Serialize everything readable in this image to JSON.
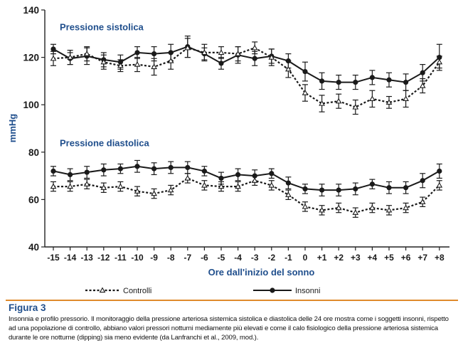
{
  "figure": {
    "title": "Figura 3",
    "caption": "Insonnia e profilo pressorio. Il monitoraggio della pressione arteriosa sistemica sistolica e diastolica delle 24 ore mostra come i soggetti insonni, rispetto ad una popolazione di controllo, abbiano valori pressori notturni mediamente più elevati e come il calo fisiologico della pressione arteriosa sistemica durante le ore notturne (dipping) sia meno evidente (da Lanfranchi et al., 2009, mod.)."
  },
  "chart_data": {
    "type": "line",
    "xlabel": "Ore dall'inizio del sonno",
    "ylabel": "mmHg",
    "ylim": [
      40,
      140
    ],
    "yticks": [
      40,
      60,
      80,
      100,
      120,
      140
    ],
    "categories": [
      "-15",
      "-14",
      "-13",
      "-12",
      "-11",
      "-10",
      "-9",
      "-8",
      "-7",
      "-6",
      "-5",
      "-4",
      "-3",
      "-2",
      "-1",
      "0",
      "+1",
      "+2",
      "+3",
      "+4",
      "+5",
      "+6",
      "+7",
      "+8"
    ],
    "annotations": [
      {
        "text": "Pressione sistolica",
        "anchor_value": 133
      },
      {
        "text": "Pressione diastolica",
        "anchor_value": 84
      }
    ],
    "legend": {
      "position": "bottom"
    },
    "series": [
      {
        "name": "Insonni",
        "group": "sistolica",
        "style": "solid",
        "marker": "circle",
        "values": [
          123.5,
          119.5,
          120.5,
          119,
          118,
          122,
          121.5,
          122,
          124.5,
          121.5,
          117.5,
          121,
          119.5,
          120.5,
          118.5,
          114,
          110,
          109.5,
          109.5,
          111.5,
          110.5,
          109.5,
          113.5,
          120
        ],
        "errors": [
          2,
          2.5,
          3.5,
          3,
          3,
          2.5,
          3,
          3.5,
          4.5,
          2.5,
          2.5,
          3.5,
          3,
          3,
          3,
          4,
          3.5,
          3,
          3,
          3,
          3,
          3.5,
          3.5,
          5.5
        ]
      },
      {
        "name": "Controlli",
        "group": "sistolica",
        "style": "dashed",
        "marker": "triangle",
        "values": [
          119.5,
          120,
          121.5,
          118,
          116.5,
          117,
          116,
          118.5,
          124,
          122,
          122,
          121.5,
          124,
          120,
          115,
          105,
          100.5,
          101.5,
          99,
          102.5,
          101,
          102.5,
          108,
          118
        ],
        "errors": [
          3,
          3,
          3,
          3,
          2.5,
          3,
          3.5,
          3.5,
          4,
          3.5,
          2.5,
          3,
          2.5,
          3.5,
          3.5,
          3.5,
          3.5,
          3,
          3,
          3.5,
          2.5,
          3.5,
          3,
          2.5
        ]
      },
      {
        "name": "Insonni",
        "group": "diastolica",
        "style": "solid",
        "marker": "circle",
        "values": [
          72,
          70.5,
          71.5,
          72.5,
          73,
          74,
          73,
          73.5,
          73.5,
          72,
          69,
          70.5,
          70,
          71,
          67,
          64.5,
          64,
          64,
          64.5,
          66.5,
          65,
          65,
          68,
          72
        ],
        "errors": [
          2,
          2.5,
          2.5,
          2.5,
          2,
          2.5,
          2.5,
          2.5,
          2.5,
          2,
          2.5,
          2.5,
          2.5,
          2,
          2.5,
          2,
          2.5,
          2.5,
          2.5,
          2,
          2.5,
          2.5,
          3,
          3
        ]
      },
      {
        "name": "Controlli",
        "group": "diastolica",
        "style": "dashed",
        "marker": "triangle",
        "values": [
          65.5,
          65.5,
          66.5,
          65,
          65.5,
          63.5,
          62.5,
          64,
          69,
          66,
          65.5,
          65.5,
          68,
          66,
          62,
          57,
          55.5,
          56.5,
          54.5,
          56.5,
          55.5,
          56.5,
          59,
          66
        ],
        "errors": [
          2,
          2,
          2,
          2,
          2,
          2,
          2,
          2,
          2,
          2,
          2,
          2,
          2,
          2,
          2,
          2,
          2,
          2,
          2,
          2,
          2,
          2,
          2,
          2
        ]
      }
    ]
  }
}
